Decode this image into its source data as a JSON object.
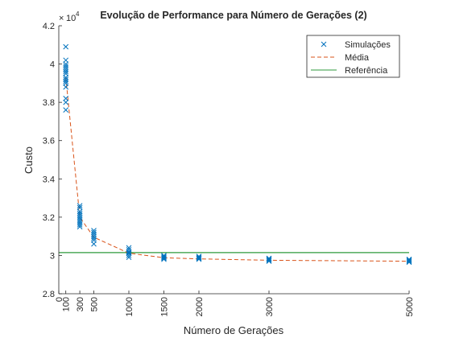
{
  "chart_data": {
    "type": "scatter",
    "title": "Evolução de Performance para Número de Gerações (2)",
    "xlabel": "Número de Gerações",
    "ylabel": "Custo",
    "y_exponent_label": "10",
    "y_exponent_power": "4",
    "xlim": [
      0,
      5000
    ],
    "ylim": [
      2.8,
      4.2
    ],
    "x_ticks": [
      0,
      100,
      300,
      500,
      1000,
      1500,
      2000,
      3000,
      5000
    ],
    "x_tick_labels": [
      "0",
      "100",
      "300",
      "500",
      "1000",
      "1500",
      "2000",
      "3000",
      "5000"
    ],
    "y_ticks": [
      2.8,
      3.0,
      3.2,
      3.4,
      3.6,
      3.8,
      4.0,
      4.2
    ],
    "y_tick_labels": [
      "2.8",
      "3",
      "3.2",
      "3.4",
      "3.6",
      "3.8",
      "4",
      "4.2"
    ],
    "grid": false,
    "legend_position": "top-right",
    "legend": [
      "Simulações",
      "Média",
      "Referência"
    ],
    "colors": {
      "simulations": "#0072BD",
      "mean": "#D95319",
      "reference": "#2E9A3C"
    },
    "series": [
      {
        "name": "Simulações",
        "marker": "x",
        "points": [
          [
            100,
            4.09
          ],
          [
            100,
            4.02
          ],
          [
            100,
            4.0
          ],
          [
            100,
            3.99
          ],
          [
            100,
            3.98
          ],
          [
            100,
            3.97
          ],
          [
            100,
            3.96
          ],
          [
            100,
            3.95
          ],
          [
            100,
            3.93
          ],
          [
            100,
            3.92
          ],
          [
            100,
            3.91
          ],
          [
            100,
            3.9
          ],
          [
            100,
            3.88
          ],
          [
            100,
            3.82
          ],
          [
            100,
            3.8
          ],
          [
            100,
            3.76
          ],
          [
            300,
            3.26
          ],
          [
            300,
            3.25
          ],
          [
            300,
            3.23
          ],
          [
            300,
            3.22
          ],
          [
            300,
            3.21
          ],
          [
            300,
            3.2
          ],
          [
            300,
            3.19
          ],
          [
            300,
            3.18
          ],
          [
            300,
            3.17
          ],
          [
            300,
            3.16
          ],
          [
            300,
            3.15
          ],
          [
            500,
            3.13
          ],
          [
            500,
            3.12
          ],
          [
            500,
            3.11
          ],
          [
            500,
            3.1
          ],
          [
            500,
            3.09
          ],
          [
            500,
            3.08
          ],
          [
            500,
            3.06
          ],
          [
            1000,
            3.04
          ],
          [
            1000,
            3.03
          ],
          [
            1000,
            3.02
          ],
          [
            1000,
            3.015
          ],
          [
            1000,
            3.01
          ],
          [
            1000,
            3.0
          ],
          [
            1000,
            2.99
          ],
          [
            1500,
            3.0
          ],
          [
            1500,
            2.995
          ],
          [
            1500,
            2.99
          ],
          [
            1500,
            2.985
          ],
          [
            1500,
            2.98
          ],
          [
            2000,
            2.995
          ],
          [
            2000,
            2.99
          ],
          [
            2000,
            2.985
          ],
          [
            2000,
            2.98
          ],
          [
            3000,
            2.985
          ],
          [
            3000,
            2.98
          ],
          [
            3000,
            2.975
          ],
          [
            3000,
            2.97
          ],
          [
            5000,
            2.98
          ],
          [
            5000,
            2.975
          ],
          [
            5000,
            2.97
          ],
          [
            5000,
            2.965
          ]
        ]
      },
      {
        "name": "Média",
        "line": "dashed",
        "x": [
          100,
          300,
          500,
          1000,
          1500,
          2000,
          3000,
          5000
        ],
        "y": [
          3.93,
          3.2,
          3.095,
          3.012,
          2.988,
          2.982,
          2.975,
          2.97
        ]
      },
      {
        "name": "Referência",
        "line": "solid",
        "y_constant": 3.015
      }
    ]
  }
}
